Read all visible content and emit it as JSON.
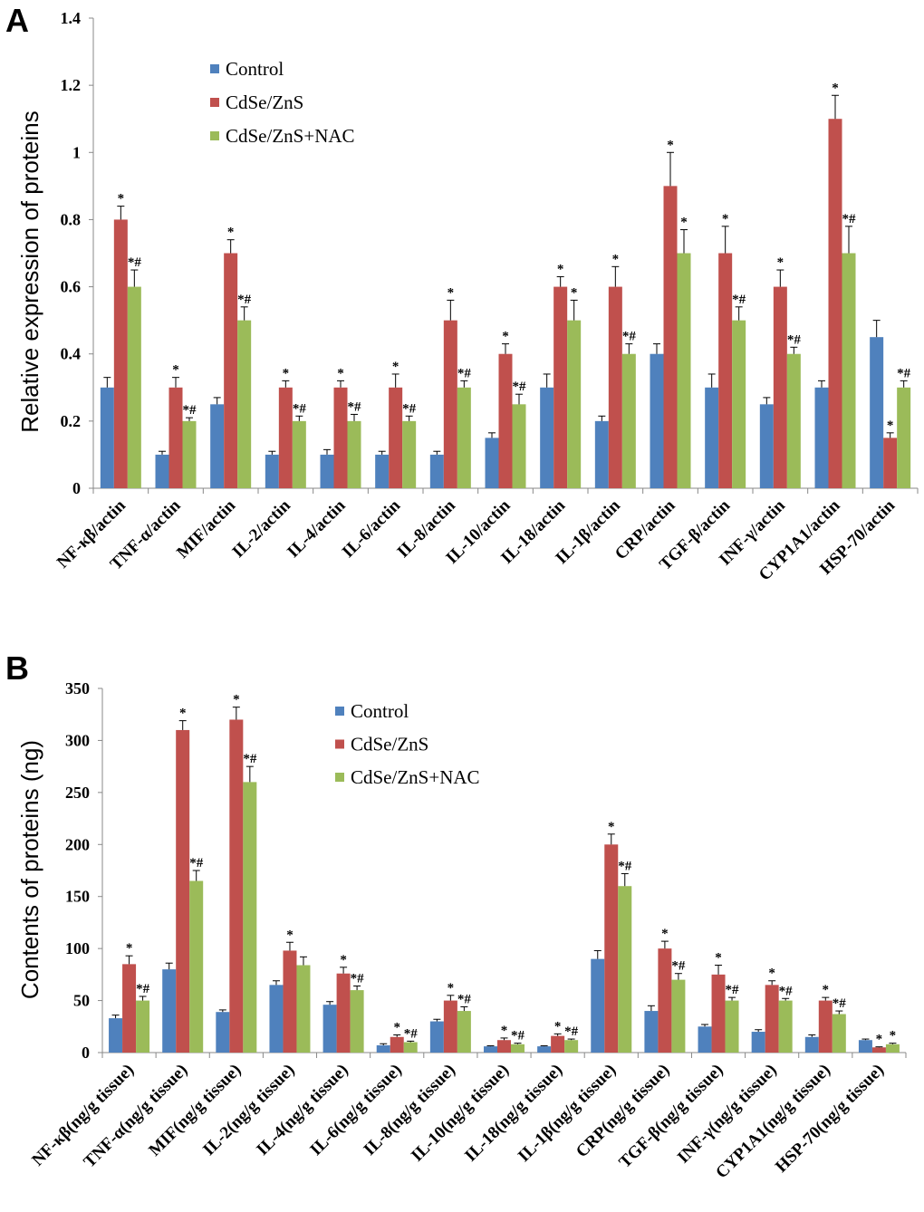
{
  "colors": {
    "Control": "#4f81bd",
    "CdSe/ZnS": "#c0504d",
    "CdSe/ZnS+NAC": "#9bbb59"
  },
  "chart_data": [
    {
      "panel": "A",
      "type": "bar",
      "ylabel": "Relative expression of proteins",
      "xlabel": "",
      "ylim": [
        0,
        1.4
      ],
      "yticks": [
        "0",
        "0.2",
        "0.4",
        "0.6",
        "0.8",
        "1",
        "1.2",
        "1.4"
      ],
      "ytick_values": [
        0,
        0.2,
        0.4,
        0.6,
        0.8,
        1.0,
        1.2,
        1.4
      ],
      "legend": [
        "Control",
        "CdSe/ZnS",
        "CdSe/ZnS+NAC"
      ],
      "legend_position": "top-left",
      "categories": [
        "NF-κβ/actin",
        "TNF-α/actin",
        "MIF/actin",
        "IL-2/actin",
        "IL-4/actin",
        "IL-6/actin",
        "IL-8/actin",
        "IL-10/actin",
        "IL-18/actin",
        "IL-1β/actin",
        "CRP/actin",
        "TGF-β/actin",
        "INF-γ/actin",
        "CYP1A1/actin",
        "HSP-70/actin"
      ],
      "series": [
        {
          "name": "Control",
          "values": [
            0.3,
            0.1,
            0.25,
            0.1,
            0.1,
            0.1,
            0.1,
            0.15,
            0.3,
            0.2,
            0.4,
            0.3,
            0.25,
            0.3,
            0.45
          ],
          "errors": [
            0.03,
            0.01,
            0.02,
            0.01,
            0.015,
            0.01,
            0.01,
            0.015,
            0.04,
            0.015,
            0.03,
            0.04,
            0.02,
            0.02,
            0.05
          ],
          "annotations": [
            "",
            "",
            "",
            "",
            "",
            "",
            "",
            "",
            "",
            "",
            "",
            "",
            "",
            "",
            ""
          ]
        },
        {
          "name": "CdSe/ZnS",
          "values": [
            0.8,
            0.3,
            0.7,
            0.3,
            0.3,
            0.3,
            0.5,
            0.4,
            0.6,
            0.6,
            0.9,
            0.7,
            0.6,
            1.1,
            0.15
          ],
          "errors": [
            0.04,
            0.03,
            0.04,
            0.02,
            0.02,
            0.04,
            0.06,
            0.03,
            0.03,
            0.06,
            0.1,
            0.08,
            0.05,
            0.07,
            0.015
          ],
          "annotations": [
            "*",
            "*",
            "*",
            "*",
            "*",
            "*",
            "*",
            "*",
            "*",
            "*",
            "*",
            "*",
            "*",
            "*",
            "*"
          ]
        },
        {
          "name": "CdSe/ZnS+NAC",
          "values": [
            0.6,
            0.2,
            0.5,
            0.2,
            0.2,
            0.2,
            0.3,
            0.25,
            0.5,
            0.4,
            0.7,
            0.5,
            0.4,
            0.7,
            0.3
          ],
          "errors": [
            0.05,
            0.01,
            0.04,
            0.015,
            0.02,
            0.015,
            0.02,
            0.03,
            0.06,
            0.03,
            0.07,
            0.04,
            0.02,
            0.08,
            0.02
          ],
          "annotations": [
            "*#",
            "*#",
            "*#",
            "*#",
            "*#",
            "*#",
            "*#",
            "*#",
            "*",
            "*#",
            "*",
            "*#",
            "*#",
            "*#",
            "*#"
          ]
        }
      ]
    },
    {
      "panel": "B",
      "type": "bar",
      "ylabel": "Contents of proteins (ng)",
      "xlabel": "",
      "ylim": [
        0,
        350
      ],
      "yticks": [
        "0",
        "50",
        "100",
        "150",
        "200",
        "250",
        "300",
        "350"
      ],
      "ytick_values": [
        0,
        50,
        100,
        150,
        200,
        250,
        300,
        350
      ],
      "legend": [
        "Control",
        "CdSe/ZnS",
        "CdSe/ZnS+NAC"
      ],
      "legend_position": "top-center",
      "categories": [
        "NF-κβ(ng/g tissue)",
        "TNF-α(ng/g tissue)",
        "MIF(ng/g tissue)",
        "IL-2(ng/g tissue)",
        "IL-4(ng/g tissue)",
        "IL-6(ng/g tissue)",
        "IL-8(ng/g tissue)",
        "IL-10(ng/g tissue)",
        "IL-18(ng/g tissue)",
        "IL-1β(ng/g tissue)",
        "CRP(ng/g tissue)",
        "TGF-β(ng/g tissue)",
        "INF-γ(ng/g tissue)",
        "CYP1A1(ng/g tissue)",
        "HSP-70(ng/g tissue)"
      ],
      "series": [
        {
          "name": "Control",
          "values": [
            33,
            80,
            39,
            65,
            46,
            7,
            30,
            6,
            6,
            90,
            40,
            25,
            20,
            15,
            12
          ],
          "errors": [
            3,
            6,
            2,
            4,
            3,
            1.5,
            2,
            0.5,
            0.5,
            8,
            5,
            2,
            2,
            2,
            1
          ],
          "annotations": [
            "",
            "",
            "",
            "",
            "",
            "",
            "",
            "",
            "",
            "",
            "",
            "",
            "",
            "",
            ""
          ]
        },
        {
          "name": "CdSe/ZnS",
          "values": [
            85,
            310,
            320,
            98,
            76,
            15,
            50,
            12,
            16,
            200,
            100,
            75,
            65,
            50,
            5
          ],
          "errors": [
            8,
            9,
            12,
            8,
            6,
            2,
            5,
            2,
            2,
            10,
            7,
            9,
            4,
            3,
            0.5
          ],
          "annotations": [
            "*",
            "*",
            "*",
            "*",
            "*",
            "*",
            "*",
            "*",
            "*",
            "*",
            "*",
            "*",
            "*",
            "*",
            "*"
          ]
        },
        {
          "name": "CdSe/ZnS+NAC",
          "values": [
            50,
            165,
            260,
            84,
            60,
            10,
            40,
            8,
            12,
            160,
            70,
            50,
            50,
            37,
            8
          ],
          "errors": [
            4,
            10,
            15,
            8,
            4,
            1,
            4,
            1,
            1,
            12,
            6,
            3,
            2,
            3,
            1
          ],
          "annotations": [
            "*#",
            "*#",
            "*#",
            "",
            "*#",
            "*#",
            "*#",
            "*#",
            "*#",
            "*#",
            "*#",
            "*#",
            "*#",
            "*#",
            "*"
          ]
        }
      ]
    }
  ]
}
